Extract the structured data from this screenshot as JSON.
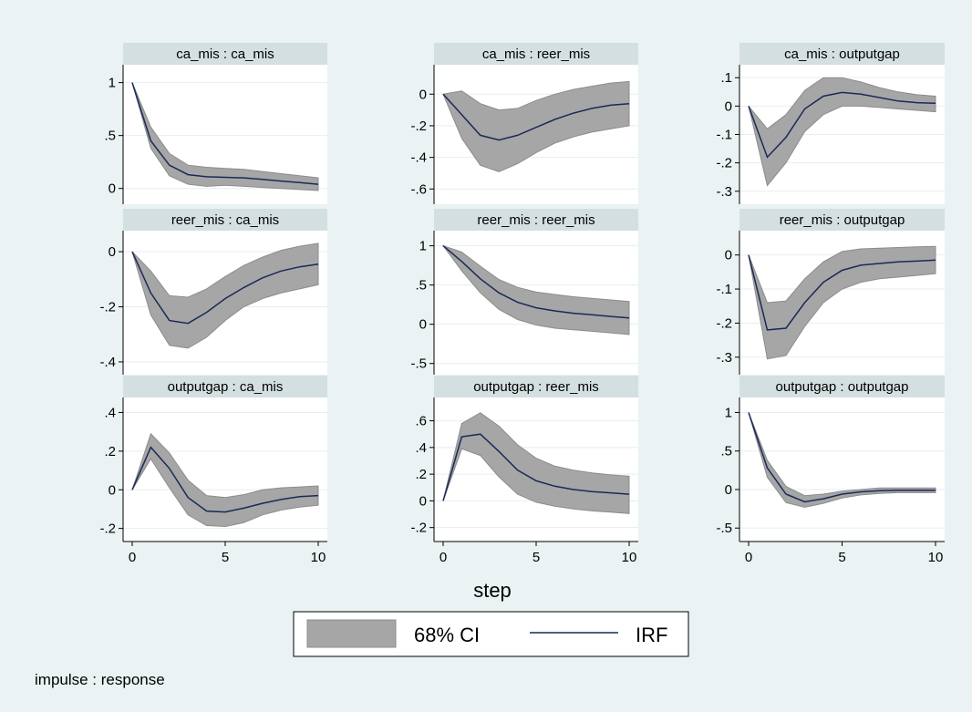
{
  "colors": {
    "background": "#eaf2f3",
    "panel_header": "#d4dfe1",
    "ci_fill": "#a6a6a6",
    "ci_stroke": "#8c8c8c",
    "irf_line": "#1a2a57",
    "gridline": "#e7eef0"
  },
  "xlabel": "step",
  "note": "impulse : response",
  "legend": {
    "ci_label": "68% CI",
    "irf_label": "IRF"
  },
  "chart_data": [
    {
      "type": "area",
      "title": "ca_mis : ca_mis",
      "x": [
        0,
        1,
        2,
        3,
        4,
        5,
        6,
        7,
        8,
        9,
        10
      ],
      "xticks": [
        0,
        5,
        10
      ],
      "yticks": [
        0,
        0.5,
        1
      ],
      "ytick_labels": [
        "0",
        ".5",
        "1"
      ],
      "ylim": [
        -0.08,
        1.1
      ],
      "series": [
        {
          "name": "IRF",
          "values": [
            1.0,
            0.45,
            0.22,
            0.13,
            0.11,
            0.105,
            0.1,
            0.085,
            0.07,
            0.055,
            0.04
          ]
        },
        {
          "name": "CI lower",
          "values": [
            1.0,
            0.38,
            0.12,
            0.04,
            0.02,
            0.03,
            0.02,
            0.01,
            0.0,
            -0.01,
            -0.02
          ]
        },
        {
          "name": "CI upper",
          "values": [
            1.0,
            0.58,
            0.33,
            0.22,
            0.2,
            0.19,
            0.18,
            0.16,
            0.14,
            0.12,
            0.1
          ]
        }
      ]
    },
    {
      "type": "area",
      "title": "ca_mis : reer_mis",
      "x": [
        0,
        1,
        2,
        3,
        4,
        5,
        6,
        7,
        8,
        9,
        10
      ],
      "xticks": [
        0,
        5,
        10
      ],
      "yticks": [
        -0.6,
        -0.4,
        -0.2,
        0
      ],
      "ytick_labels": [
        "-.6",
        "-.4",
        "-.2",
        "0"
      ],
      "ylim": [
        -0.65,
        0.14
      ],
      "series": [
        {
          "name": "IRF",
          "values": [
            0,
            -0.13,
            -0.26,
            -0.29,
            -0.26,
            -0.21,
            -0.16,
            -0.12,
            -0.09,
            -0.07,
            -0.06
          ]
        },
        {
          "name": "CI lower",
          "values": [
            0,
            -0.28,
            -0.45,
            -0.49,
            -0.44,
            -0.37,
            -0.31,
            -0.27,
            -0.24,
            -0.22,
            -0.2
          ]
        },
        {
          "name": "CI upper",
          "values": [
            0,
            0.02,
            -0.06,
            -0.1,
            -0.09,
            -0.04,
            0.0,
            0.03,
            0.05,
            0.07,
            0.08
          ]
        }
      ]
    },
    {
      "type": "area",
      "title": "ca_mis : outputgap",
      "x": [
        0,
        1,
        2,
        3,
        4,
        5,
        6,
        7,
        8,
        9,
        10
      ],
      "xticks": [
        0,
        5,
        10
      ],
      "yticks": [
        -0.3,
        -0.2,
        -0.1,
        0,
        0.1
      ],
      "ytick_labels": [
        "-.3",
        "-.2",
        "-.1",
        "0",
        ".1"
      ],
      "ylim": [
        -0.32,
        0.12
      ],
      "series": [
        {
          "name": "IRF",
          "values": [
            0,
            -0.18,
            -0.11,
            -0.01,
            0.035,
            0.048,
            0.042,
            0.03,
            0.018,
            0.012,
            0.01
          ]
        },
        {
          "name": "CI lower",
          "values": [
            0,
            -0.28,
            -0.2,
            -0.09,
            -0.03,
            0.0,
            0.0,
            -0.005,
            -0.01,
            -0.015,
            -0.02
          ]
        },
        {
          "name": "CI upper",
          "values": [
            0,
            -0.08,
            -0.03,
            0.055,
            0.1,
            0.1,
            0.085,
            0.065,
            0.05,
            0.04,
            0.035
          ]
        }
      ]
    },
    {
      "type": "area",
      "title": "reer_mis : ca_mis",
      "x": [
        0,
        1,
        2,
        3,
        4,
        5,
        6,
        7,
        8,
        9,
        10
      ],
      "xticks": [
        0,
        5,
        10
      ],
      "yticks": [
        -0.4,
        -0.2,
        0
      ],
      "ytick_labels": [
        "-.4",
        "-.2",
        "0"
      ],
      "ylim": [
        -0.42,
        0.05
      ],
      "series": [
        {
          "name": "IRF",
          "values": [
            0,
            -0.15,
            -0.25,
            -0.26,
            -0.22,
            -0.17,
            -0.13,
            -0.095,
            -0.07,
            -0.055,
            -0.045
          ]
        },
        {
          "name": "CI lower",
          "values": [
            0,
            -0.23,
            -0.34,
            -0.35,
            -0.31,
            -0.25,
            -0.2,
            -0.17,
            -0.15,
            -0.135,
            -0.12
          ]
        },
        {
          "name": "CI upper",
          "values": [
            0,
            -0.07,
            -0.16,
            -0.165,
            -0.135,
            -0.09,
            -0.05,
            -0.02,
            0.005,
            0.02,
            0.03
          ]
        }
      ]
    },
    {
      "type": "area",
      "title": "reer_mis : reer_mis",
      "x": [
        0,
        1,
        2,
        3,
        4,
        5,
        6,
        7,
        8,
        9,
        10
      ],
      "xticks": [
        0,
        5,
        10
      ],
      "yticks": [
        -0.5,
        0,
        0.5,
        1
      ],
      "ytick_labels": [
        "-.5",
        "0",
        ".5",
        "1"
      ],
      "ylim": [
        -0.55,
        1.1
      ],
      "series": [
        {
          "name": "IRF",
          "values": [
            1.0,
            0.8,
            0.58,
            0.4,
            0.28,
            0.21,
            0.17,
            0.14,
            0.12,
            0.1,
            0.08
          ]
        },
        {
          "name": "CI lower",
          "values": [
            1.0,
            0.68,
            0.4,
            0.19,
            0.06,
            -0.01,
            -0.05,
            -0.07,
            -0.09,
            -0.11,
            -0.13
          ]
        },
        {
          "name": "CI upper",
          "values": [
            1.0,
            0.92,
            0.74,
            0.57,
            0.47,
            0.41,
            0.38,
            0.35,
            0.33,
            0.31,
            0.29
          ]
        }
      ]
    },
    {
      "type": "area",
      "title": "reer_mis : outputgap",
      "x": [
        0,
        1,
        2,
        3,
        4,
        5,
        6,
        7,
        8,
        9,
        10
      ],
      "xticks": [
        0,
        5,
        10
      ],
      "yticks": [
        -0.3,
        -0.2,
        -0.1,
        0
      ],
      "ytick_labels": [
        "-.3",
        "-.2",
        "-.1",
        "0"
      ],
      "ylim": [
        -0.33,
        0.05
      ],
      "series": [
        {
          "name": "IRF",
          "values": [
            0,
            -0.22,
            -0.215,
            -0.14,
            -0.08,
            -0.045,
            -0.03,
            -0.025,
            -0.02,
            -0.018,
            -0.015
          ]
        },
        {
          "name": "CI lower",
          "values": [
            0,
            -0.305,
            -0.295,
            -0.21,
            -0.14,
            -0.1,
            -0.08,
            -0.07,
            -0.065,
            -0.06,
            -0.055
          ]
        },
        {
          "name": "CI upper",
          "values": [
            0,
            -0.14,
            -0.135,
            -0.07,
            -0.02,
            0.01,
            0.018,
            0.02,
            0.022,
            0.024,
            0.025
          ]
        }
      ]
    },
    {
      "type": "area",
      "title": "outputgap : ca_mis",
      "x": [
        0,
        1,
        2,
        3,
        4,
        5,
        6,
        7,
        8,
        9,
        10
      ],
      "xticks": [
        0,
        5,
        10
      ],
      "yticks": [
        -0.2,
        0,
        0.2,
        0.4
      ],
      "ytick_labels": [
        "-.2",
        "0",
        ".2",
        ".4"
      ],
      "ylim": [
        -0.23,
        0.44
      ],
      "series": [
        {
          "name": "IRF",
          "values": [
            0,
            0.22,
            0.11,
            -0.04,
            -0.11,
            -0.115,
            -0.095,
            -0.07,
            -0.05,
            -0.035,
            -0.03
          ]
        },
        {
          "name": "CI lower",
          "values": [
            0,
            0.16,
            0.01,
            -0.13,
            -0.185,
            -0.19,
            -0.17,
            -0.13,
            -0.105,
            -0.09,
            -0.08
          ]
        },
        {
          "name": "CI upper",
          "values": [
            0,
            0.29,
            0.19,
            0.05,
            -0.03,
            -0.04,
            -0.025,
            0.0,
            0.01,
            0.015,
            0.02
          ]
        }
      ]
    },
    {
      "type": "area",
      "title": "outputgap : reer_mis",
      "x": [
        0,
        1,
        2,
        3,
        4,
        5,
        6,
        7,
        8,
        9,
        10
      ],
      "xticks": [
        0,
        5,
        10
      ],
      "yticks": [
        -0.2,
        0,
        0.2,
        0.4,
        0.6
      ],
      "ytick_labels": [
        "-.2",
        "0",
        ".2",
        ".4",
        ".6"
      ],
      "ylim": [
        -0.25,
        0.72
      ],
      "series": [
        {
          "name": "IRF",
          "values": [
            0,
            0.48,
            0.5,
            0.37,
            0.23,
            0.15,
            0.11,
            0.085,
            0.07,
            0.06,
            0.05
          ]
        },
        {
          "name": "CI lower",
          "values": [
            0,
            0.39,
            0.34,
            0.18,
            0.05,
            -0.01,
            -0.04,
            -0.06,
            -0.075,
            -0.085,
            -0.095
          ]
        },
        {
          "name": "CI upper",
          "values": [
            0,
            0.58,
            0.66,
            0.56,
            0.42,
            0.32,
            0.26,
            0.23,
            0.21,
            0.195,
            0.185
          ]
        }
      ]
    },
    {
      "type": "area",
      "title": "outputgap : outputgap",
      "x": [
        0,
        1,
        2,
        3,
        4,
        5,
        6,
        7,
        8,
        9,
        10
      ],
      "xticks": [
        0,
        5,
        10
      ],
      "yticks": [
        -0.5,
        0,
        0.5,
        1
      ],
      "ytick_labels": [
        "-.5",
        "0",
        ".5",
        "1"
      ],
      "ylim": [
        -0.58,
        1.1
      ],
      "series": [
        {
          "name": "IRF",
          "values": [
            1.0,
            0.28,
            -0.06,
            -0.16,
            -0.12,
            -0.06,
            -0.03,
            -0.015,
            -0.01,
            -0.01,
            -0.01
          ]
        },
        {
          "name": "CI lower",
          "values": [
            1.0,
            0.16,
            -0.17,
            -0.23,
            -0.18,
            -0.11,
            -0.07,
            -0.05,
            -0.04,
            -0.04,
            -0.04
          ]
        },
        {
          "name": "CI upper",
          "values": [
            1.0,
            0.38,
            0.04,
            -0.08,
            -0.06,
            -0.02,
            0.0,
            0.02,
            0.02,
            0.02,
            0.02
          ]
        }
      ]
    }
  ]
}
